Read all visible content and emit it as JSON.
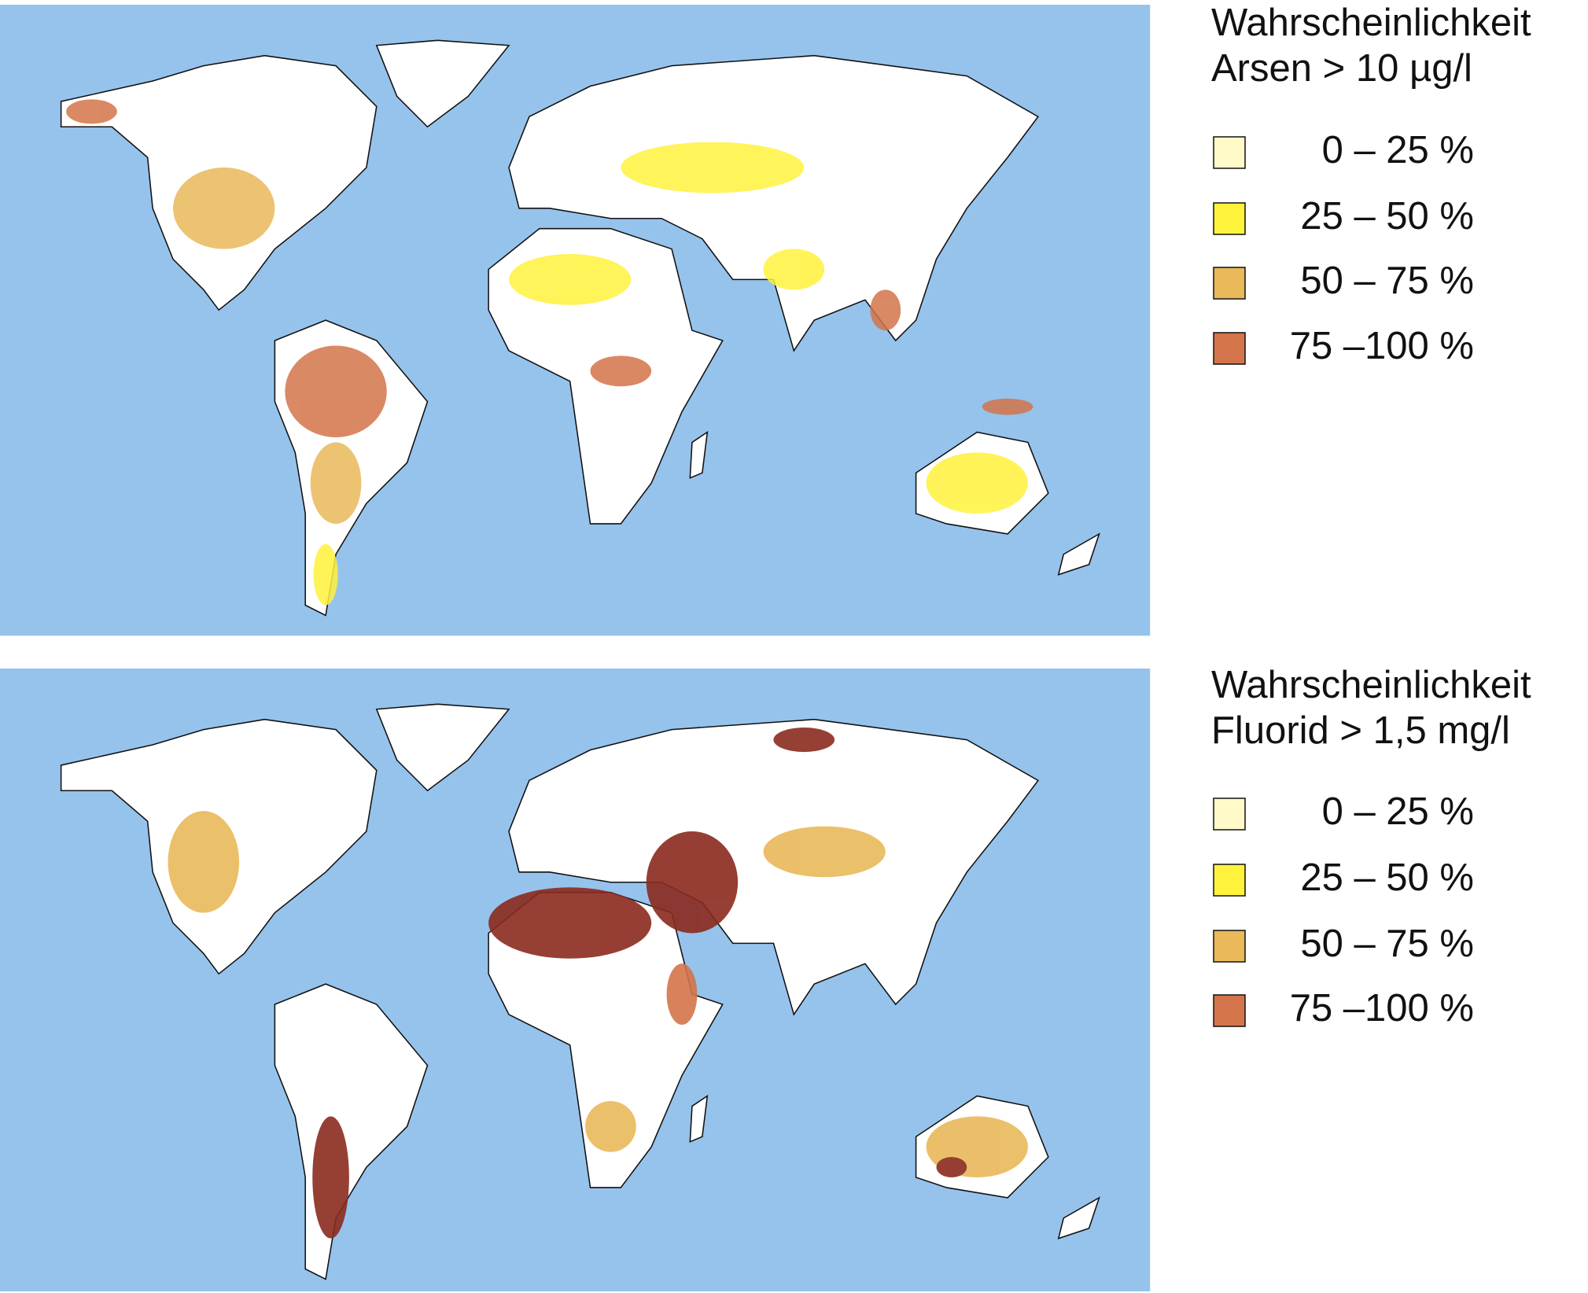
{
  "maps": [
    {
      "legend": {
        "title": [
          "Wahrscheinlichkeit",
          "Arsen > 10 µg/l"
        ],
        "items": [
          {
            "label": "0 –  25 %",
            "color": "#fffac8"
          },
          {
            "label": "25 –  50 %",
            "color": "#fff23c"
          },
          {
            "label": "50 –  75 %",
            "color": "#e9b95a"
          },
          {
            "label": "75 –100 %",
            "color": "#d4744a"
          }
        ]
      }
    },
    {
      "legend": {
        "title": [
          "Wahrscheinlichkeit",
          "Fluorid > 1,5 mg/l"
        ],
        "items": [
          {
            "label": "0 –  25 %",
            "color": "#fffac8"
          },
          {
            "label": "25 –  50 %",
            "color": "#fff23c"
          },
          {
            "label": "50 –  75 %",
            "color": "#e9b95a"
          },
          {
            "label": "75 –100 %",
            "color": "#d4744a"
          }
        ]
      }
    }
  ]
}
